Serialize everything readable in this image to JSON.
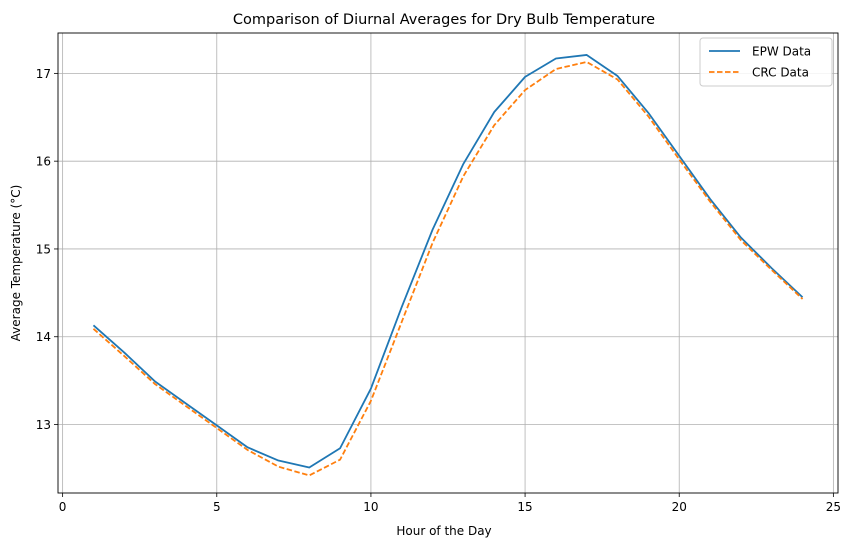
{
  "chart_data": {
    "type": "line",
    "title": "Comparison of Diurnal Averages for Dry Bulb Temperature",
    "xlabel": "Hour of the Day",
    "ylabel": "Average Temperature (°C)",
    "xlim": [
      -0.15,
      25.15
    ],
    "ylim": [
      12.22,
      17.46
    ],
    "xticks": [
      0,
      5,
      10,
      15,
      20,
      25
    ],
    "yticks": [
      13,
      14,
      15,
      16,
      17
    ],
    "grid": true,
    "legend_position": "top-right",
    "x": [
      1,
      2,
      3,
      4,
      5,
      6,
      7,
      8,
      9,
      10,
      11,
      12,
      13,
      14,
      15,
      16,
      17,
      18,
      19,
      20,
      21,
      22,
      23,
      24
    ],
    "series": [
      {
        "name": "EPW Data",
        "color": "#1f77b4",
        "style": "solid",
        "values": [
          14.13,
          13.82,
          13.49,
          13.24,
          12.99,
          12.74,
          12.59,
          12.51,
          12.73,
          13.41,
          14.34,
          15.22,
          15.97,
          16.56,
          16.96,
          17.17,
          17.21,
          16.97,
          16.55,
          16.06,
          15.57,
          15.13,
          14.78,
          14.45
        ]
      },
      {
        "name": "CRC Data",
        "color": "#ff7f0e",
        "style": "dashed",
        "values": [
          14.09,
          13.78,
          13.46,
          13.21,
          12.96,
          12.71,
          12.52,
          12.42,
          12.6,
          13.27,
          14.17,
          15.07,
          15.83,
          16.41,
          16.81,
          17.05,
          17.13,
          16.93,
          16.51,
          16.02,
          15.54,
          15.1,
          14.76,
          14.43
        ]
      }
    ]
  }
}
